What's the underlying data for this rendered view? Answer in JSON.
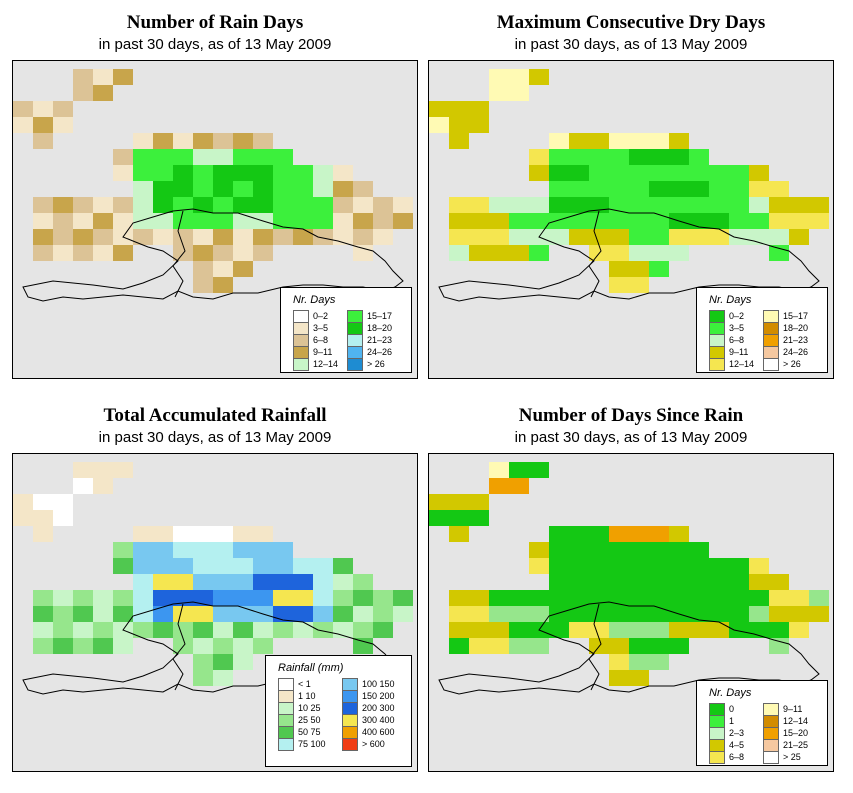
{
  "panels": [
    {
      "title": "Number of Rain Days",
      "subtitle": "in past 30 days, as of  13 May 2009",
      "legend_title": "Nr. Days",
      "legend": [
        {
          "label": "0–2",
          "color": "#ffffff"
        },
        {
          "label": "3–5",
          "color": "#f4e6c8"
        },
        {
          "label": "6–8",
          "color": "#dcc396"
        },
        {
          "label": "9–11",
          "color": "#c8a54b"
        },
        {
          "label": "12–14",
          "color": "#c8f5c8"
        },
        {
          "label": "15–17",
          "color": "#3cf03c"
        },
        {
          "label": "18–20",
          "color": "#14c814"
        },
        {
          "label": "21–23",
          "color": "#b4f0f0"
        },
        {
          "label": "24–26",
          "color": "#50b4f0"
        },
        {
          "label": "> 26",
          "color": "#1e8cd2"
        }
      ]
    },
    {
      "title": "Maximum Consecutive Dry Days",
      "subtitle": "in past 30 days, as of  13 May 2009",
      "legend_title": "Nr. Days",
      "legend": [
        {
          "label": "0–2",
          "color": "#14c814"
        },
        {
          "label": "3–5",
          "color": "#3cf03c"
        },
        {
          "label": "6–8",
          "color": "#c8f5c8"
        },
        {
          "label": "9–11",
          "color": "#d2c800"
        },
        {
          "label": "12–14",
          "color": "#f5e650"
        },
        {
          "label": "15–17",
          "color": "#fffab4"
        },
        {
          "label": "18–20",
          "color": "#d28c00"
        },
        {
          "label": "21–23",
          "color": "#f0a000"
        },
        {
          "label": "24–26",
          "color": "#f5c8a0"
        },
        {
          "label": "> 26",
          "color": "#ffffff"
        }
      ]
    },
    {
      "title": "Total Accumulated Rainfall",
      "subtitle": "in past 30 days, as of  13 May 2009",
      "legend_title": "Rainfall (mm)",
      "legend": [
        {
          "label": "< 1",
          "color": "#ffffff"
        },
        {
          "label": "1     10",
          "color": "#f4e6c8"
        },
        {
          "label": "10     25",
          "color": "#c8f5c8"
        },
        {
          "label": "25     50",
          "color": "#96e68c"
        },
        {
          "label": "50     75",
          "color": "#50c850"
        },
        {
          "label": "75   100",
          "color": "#b4f0f0"
        },
        {
          "label": "100   150",
          "color": "#78c8f0"
        },
        {
          "label": "150   200",
          "color": "#3c96f0"
        },
        {
          "label": "200   300",
          "color": "#1e64dc"
        },
        {
          "label": "300   400",
          "color": "#f5e650"
        },
        {
          "label": "400   600",
          "color": "#f0a000"
        },
        {
          "label": "> 600",
          "color": "#f03c14"
        }
      ]
    },
    {
      "title": "Number of Days Since Rain",
      "subtitle": "in past 30 days, as of  13 May 2009",
      "legend_title": "Nr. Days",
      "legend": [
        {
          "label": "0",
          "color": "#14c814"
        },
        {
          "label": "1",
          "color": "#3cf03c"
        },
        {
          "label": "2–3",
          "color": "#c8f5c8"
        },
        {
          "label": "4–5",
          "color": "#d2c800"
        },
        {
          "label": "6–8",
          "color": "#f5e650"
        },
        {
          "label": "9–11",
          "color": "#fffab4"
        },
        {
          "label": "12–14",
          "color": "#d28c00"
        },
        {
          "label": "15–20",
          "color": "#f0a000"
        },
        {
          "label": "21–25",
          "color": "#f5c8a0"
        },
        {
          "label": "> 25",
          "color": "#ffffff"
        }
      ]
    }
  ]
}
